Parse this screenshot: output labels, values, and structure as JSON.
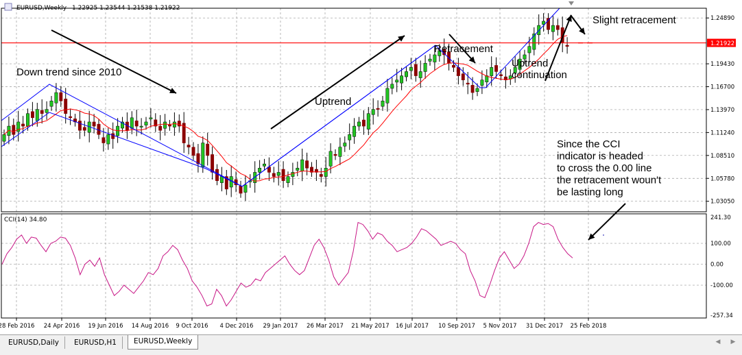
{
  "window": {
    "symbol_label": "EURUSD,Weekly",
    "ohlc_text": "1.22925 1.23544 1.21538 1.21922"
  },
  "tabs": [
    {
      "label": "EURUSD,Daily"
    },
    {
      "label": "EURUSD,H1"
    },
    {
      "label": "EURUSD,Weekly",
      "active": true
    }
  ],
  "chart_data": [
    {
      "type": "candlestick",
      "price_ticks": [
        "1.24890",
        "1.21922",
        "1.19430",
        "1.16700",
        "1.13970",
        "1.11240",
        "1.08510",
        "1.05780",
        "1.03050"
      ],
      "current_price": "1.21922",
      "ylim": [
        1.018,
        1.2605
      ],
      "colors": {
        "bull": "#22c422",
        "bear": "#8b0000",
        "ma": "#ff0000",
        "trend": "#0000ff",
        "price_line": "#ff0000"
      },
      "weekly_closes": [
        1.11,
        1.12,
        1.11,
        1.125,
        1.12,
        1.135,
        1.13,
        1.14,
        1.135,
        1.14,
        1.15,
        1.16,
        1.15,
        1.135,
        1.13,
        1.125,
        1.115,
        1.115,
        1.125,
        1.12,
        1.11,
        1.1,
        1.11,
        1.105,
        1.12,
        1.125,
        1.115,
        1.13,
        1.12,
        1.12,
        1.125,
        1.13,
        1.12,
        1.115,
        1.125,
        1.12,
        1.125,
        1.12,
        1.1,
        1.095,
        1.085,
        1.075,
        1.1,
        1.085,
        1.065,
        1.055,
        1.06,
        1.045,
        1.06,
        1.05,
        1.04,
        1.05,
        1.055,
        1.065,
        1.07,
        1.075,
        1.065,
        1.06,
        1.065,
        1.055,
        1.06,
        1.065,
        1.07,
        1.08,
        1.07,
        1.065,
        1.065,
        1.06,
        1.07,
        1.09,
        1.085,
        1.095,
        1.1,
        1.11,
        1.12,
        1.125,
        1.12,
        1.135,
        1.14,
        1.14,
        1.15,
        1.165,
        1.17,
        1.175,
        1.18,
        1.185,
        1.19,
        1.18,
        1.185,
        1.195,
        1.2,
        1.205,
        1.21,
        1.205,
        1.195,
        1.19,
        1.18,
        1.175,
        1.17,
        1.16,
        1.165,
        1.175,
        1.18,
        1.19,
        1.185,
        1.18,
        1.175,
        1.18,
        1.19,
        1.2,
        1.205,
        1.215,
        1.23,
        1.24,
        1.245,
        1.235,
        1.24,
        1.235,
        1.22,
        1.215
      ],
      "annotations": [
        "Down trend since 2010",
        "Uptrend",
        "Retracement",
        "Uptrend continuation",
        "Slight retracement",
        "Since the CCI indicator is headed to cross the 0.00 line the retracement wouldn't be lasting long"
      ],
      "annotation_lines": [
        "Since the CCI",
        "indicator is headed",
        "to cross the 0.00 line",
        "the retracement woun't",
        "be lasting long"
      ],
      "grid": true
    },
    {
      "type": "line",
      "title": "CCI(14) 34.80",
      "y_ticks": [
        "241.30",
        "100.00",
        "0.00",
        "-100.00",
        "-257.34"
      ],
      "ylim": [
        -257.34,
        241.3
      ],
      "color": "#c71585",
      "values": [
        0,
        50,
        80,
        120,
        140,
        100,
        130,
        125,
        90,
        60,
        100,
        110,
        130,
        125,
        90,
        30,
        -50,
        0,
        20,
        -10,
        30,
        -50,
        -100,
        -150,
        -130,
        -100,
        -120,
        -140,
        -110,
        -80,
        -40,
        -50,
        -20,
        40,
        60,
        90,
        70,
        20,
        -20,
        -80,
        -110,
        -150,
        -200,
        -190,
        -120,
        -150,
        -200,
        -170,
        -130,
        -90,
        -110,
        -100,
        -70,
        -80,
        -40,
        -20,
        0,
        20,
        40,
        0,
        -30,
        -50,
        -30,
        30,
        90,
        120,
        80,
        20,
        -60,
        -100,
        -70,
        -40,
        60,
        200,
        190,
        160,
        120,
        150,
        140,
        110,
        90,
        60,
        70,
        80,
        100,
        130,
        170,
        160,
        140,
        120,
        90,
        100,
        110,
        100,
        70,
        50,
        -30,
        -80,
        -150,
        -160,
        -100,
        -30,
        30,
        60,
        20,
        -20,
        0,
        40,
        100,
        180,
        200,
        190,
        195,
        180,
        120,
        80,
        50,
        30
      ],
      "grid": true
    }
  ],
  "x_tick_labels": [
    "28 Feb 2016",
    "24 Apr 2016",
    "19 Jun 2016",
    "14 Aug 2016",
    "9 Oct 2016",
    "4 Dec 2016",
    "29 Jan 2017",
    "26 Mar 2017",
    "21 May 2017",
    "16 Jul 2017",
    "10 Sep 2017",
    "5 Nov 2017",
    "31 Dec 2017",
    "25 Feb 2018"
  ]
}
